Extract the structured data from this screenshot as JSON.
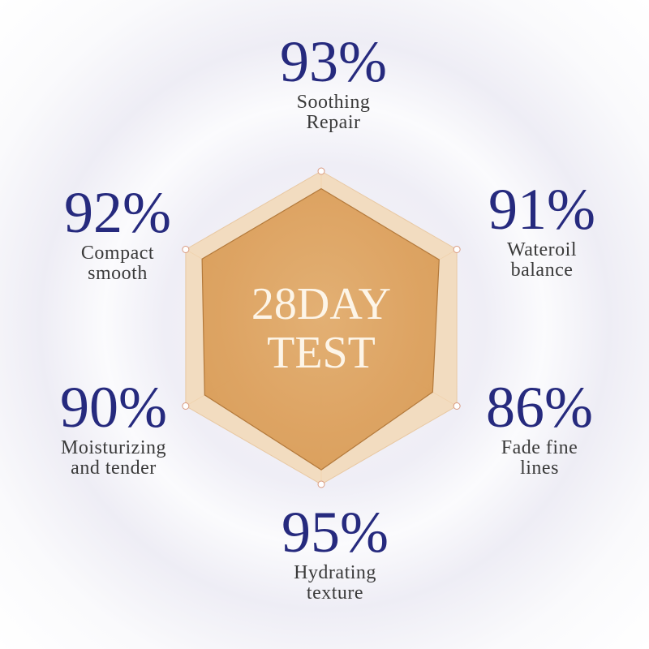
{
  "chart_data": {
    "type": "radar",
    "title_lines": [
      "28DAY",
      "TEST"
    ],
    "categories": [
      "Soothing Repair",
      "Wateroil balance",
      "Fade fine lines",
      "Hydrating texture",
      "Moisturizing and tender",
      "Compact smooth"
    ],
    "label_lines": [
      [
        "Soothing",
        "Repair"
      ],
      [
        "Wateroil",
        "balance"
      ],
      [
        "Fade fine",
        "lines"
      ],
      [
        "Hydrating",
        "texture"
      ],
      [
        "Moisturizing",
        "and tender"
      ],
      [
        "Compact",
        "smooth"
      ]
    ],
    "values": [
      93,
      91,
      86,
      95,
      90,
      92
    ],
    "value_labels": [
      "93%",
      "91%",
      "86%",
      "95%",
      "90%",
      "92%"
    ],
    "range": [
      0,
      100
    ],
    "colors": {
      "outer": "#f2dcc0",
      "inner": "#dfa766",
      "inner_stroke": "#b07434",
      "number": "#262a7e",
      "label": "#3a3a3a"
    }
  }
}
